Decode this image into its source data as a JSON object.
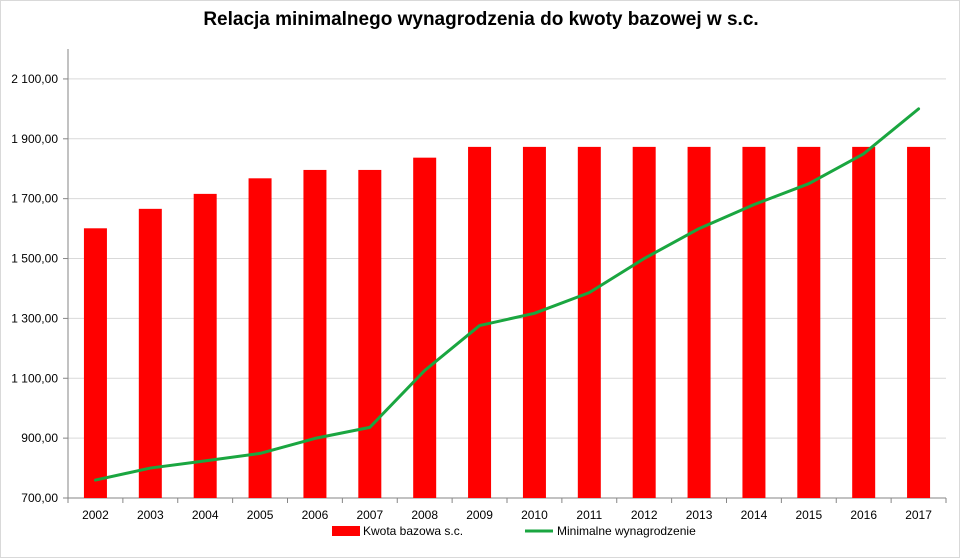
{
  "chart_data": {
    "type": "bar",
    "title": "Relacja minimalnego  wynagrodzenia  do kwoty bazowej w s.c.",
    "xlabel": "",
    "ylabel": "",
    "categories": [
      "2002",
      "2003",
      "2004",
      "2005",
      "2006",
      "2007",
      "2008",
      "2009",
      "2010",
      "2011",
      "2012",
      "2013",
      "2014",
      "2015",
      "2016",
      "2017"
    ],
    "ylim": [
      700,
      2200
    ],
    "yticks": [
      700,
      900,
      1100,
      1300,
      1500,
      1700,
      1900,
      2100
    ],
    "ytick_labels": [
      "700,00",
      "900,00",
      "1 100,00",
      "1 300,00",
      "1 500,00",
      "1 700,00",
      "1 900,00",
      "2 100,00"
    ],
    "grid": true,
    "legend_position": "bottom",
    "series": [
      {
        "name": "Kwota bazowa s.c.",
        "type": "bar",
        "color": "#ff0000",
        "values": [
          1601,
          1666,
          1716,
          1768,
          1796,
          1796,
          1837,
          1873,
          1873,
          1873,
          1873,
          1873,
          1873,
          1873,
          1873,
          1873
        ]
      },
      {
        "name": "Minimalne wynagrodzenie",
        "type": "line",
        "color": "#1aa640",
        "values": [
          760,
          800,
          824,
          849,
          899.1,
          936,
          1126,
          1276,
          1317,
          1386,
          1500,
          1600,
          1680,
          1750,
          1850,
          2000
        ]
      }
    ]
  }
}
